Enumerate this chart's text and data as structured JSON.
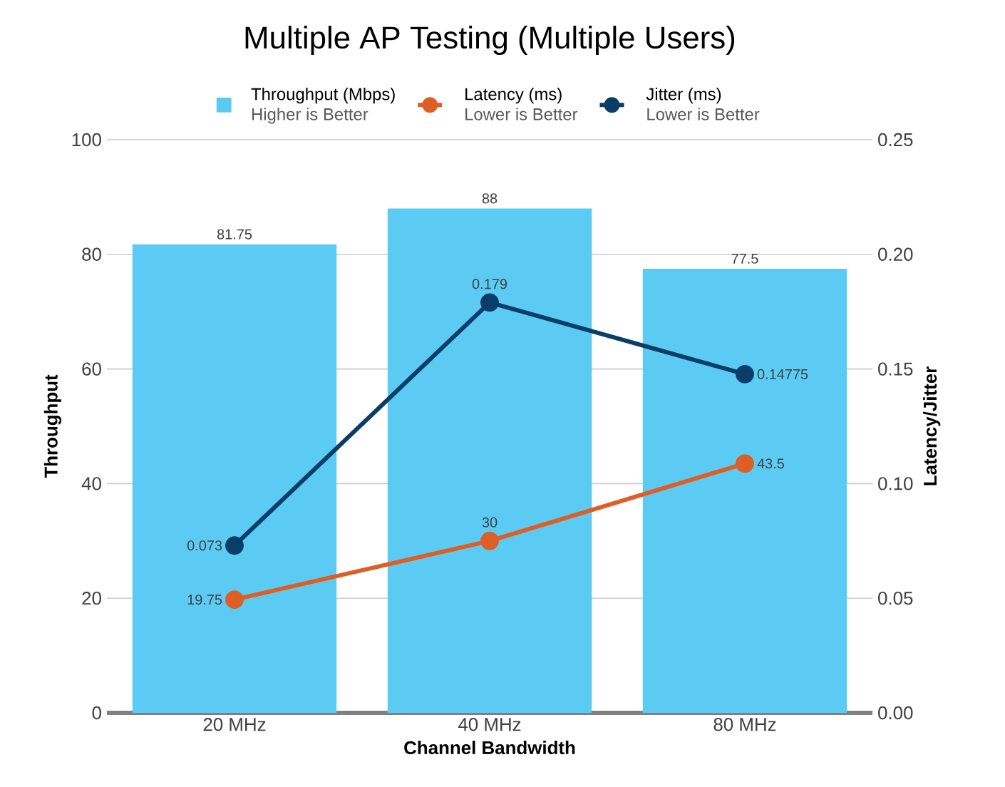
{
  "chart_data": {
    "type": "bar",
    "title": "Multiple AP Testing (Multiple Users)",
    "xlabel": "Channel Bandwidth",
    "ylabel": "Throughput",
    "y2label": "Latency/Jitter",
    "categories": [
      "20 MHz",
      "40 MHz",
      "80 MHz"
    ],
    "series": [
      {
        "name": "Throughput (Mbps)",
        "color": "#5ccbf3",
        "values": [
          81.75,
          88,
          77.5
        ]
      },
      {
        "name": "Latency (ms)",
        "type": "line",
        "color": "#dd5f26",
        "values": [
          19.75,
          30,
          43.5
        ]
      },
      {
        "name": "Jitter (ms)",
        "type": "line",
        "color": "#0a3d67",
        "values": [
          0.073,
          0.179,
          0.14775
        ],
        "axis": "y2"
      }
    ],
    "annotations": [
      "Higher is Better",
      "Lower is Better",
      "Lower is Better"
    ],
    "ylim": [
      0,
      100
    ],
    "yticks": [
      0,
      20,
      40,
      60,
      80,
      100
    ],
    "y2lim": [
      0,
      0.25
    ],
    "y2ticks": [
      {
        "value": 0,
        "label": "0.00"
      },
      {
        "value": 0.05,
        "label": "0.05"
      },
      {
        "value": 0.1,
        "label": "0.10"
      },
      {
        "value": 0.15,
        "label": "0.15"
      },
      {
        "value": 0.2,
        "label": "0.20"
      },
      {
        "value": 0.25,
        "label": "0.25"
      }
    ],
    "grid": "y",
    "legend": "top",
    "marker": "circle",
    "data_labels": true
  }
}
